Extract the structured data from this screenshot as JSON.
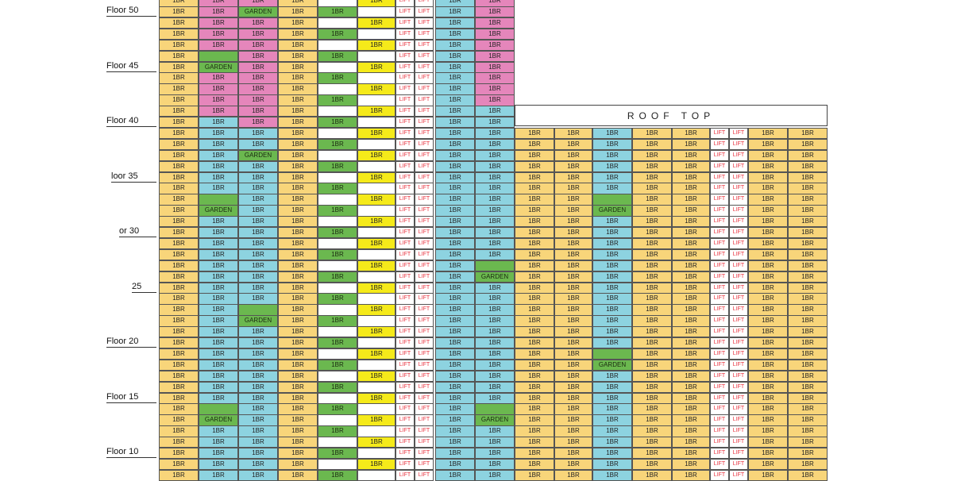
{
  "rooftop_label": "ROOF TOP",
  "labels": {
    "floor": "Floor",
    "one_br": "1BR",
    "garden": "GARDEN",
    "lift": "LIFT"
  },
  "floor_labels": [
    "Floor 50",
    "Floor 45",
    "Floor 40",
    "loor 35",
    "or 30",
    "25",
    "Floor 20",
    "Floor 15",
    "Floor 10"
  ],
  "colors": {
    "yellow": "#f8d57a",
    "pink": "#e586bb",
    "blue": "#8dd3e0",
    "green": "#6bb84f",
    "bright_yellow": "#f5ea1a",
    "lift_red": "#e8303c"
  },
  "units": {
    "tower1": {
      "col0": "Y",
      "col1_pink_until": 40,
      "col2_pink_until": 42,
      "col3": "Y",
      "col9_pink_until": 42,
      "gardens": [
        {
          "col": 2,
          "floor": 50
        },
        {
          "col": 1,
          "floor": 45
        },
        {
          "col": 2,
          "floor": 37
        },
        {
          "col": 1,
          "floor": 32
        },
        {
          "col": 9,
          "floor": 26
        },
        {
          "col": 2,
          "floor": 22
        },
        {
          "col": 1,
          "floor": 13
        },
        {
          "col": 9,
          "floor": 13
        }
      ],
      "blank_garden_cells": [
        {
          "col": 1,
          "floor": 46
        },
        {
          "col": 1,
          "floor": 33
        },
        {
          "col": 2,
          "floor": 23
        },
        {
          "col": 1,
          "floor": 14
        },
        {
          "col": 9,
          "floor": 14
        },
        {
          "col": 9,
          "floor": 27
        }
      ]
    },
    "tower2": {
      "gardens": [
        {
          "col": 2,
          "floor": 32
        },
        {
          "col": 2,
          "floor": 18
        }
      ],
      "blank_garden_cells": [
        {
          "col": 2,
          "floor": 33
        },
        {
          "col": 2,
          "floor": 19
        }
      ]
    }
  }
}
